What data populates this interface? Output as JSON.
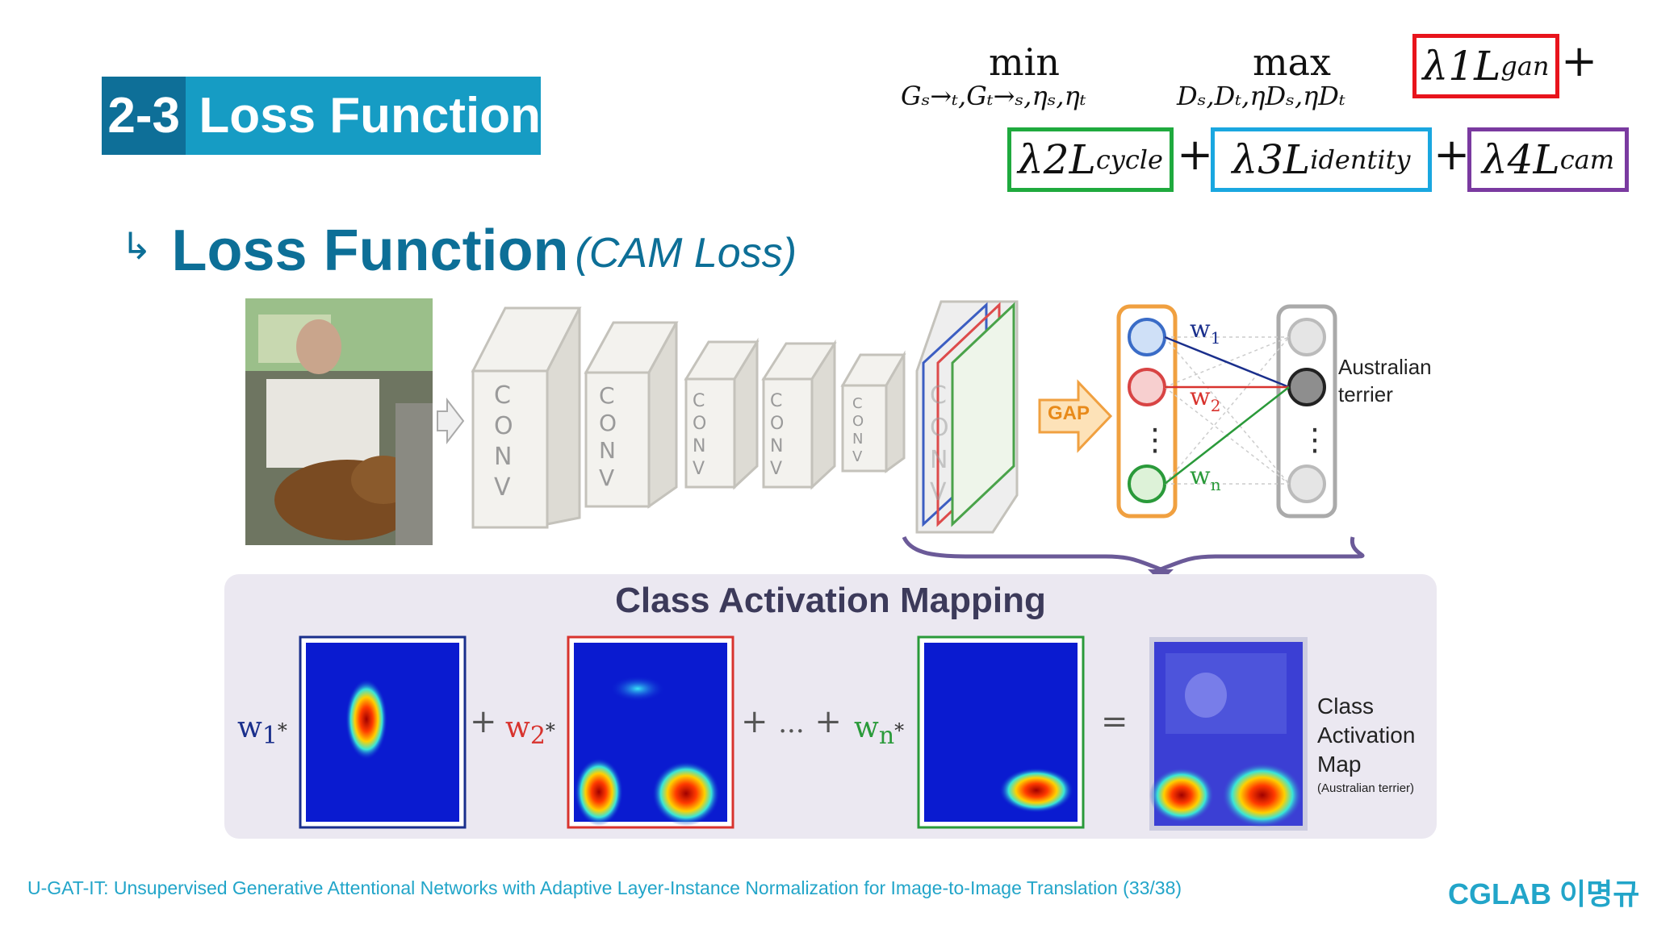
{
  "section": {
    "number": "2-3",
    "title": "Loss  Function"
  },
  "heading": {
    "arrow": "↳",
    "title": "Loss Function",
    "subtitle": "(CAM Loss)"
  },
  "formula": {
    "min_label": "min",
    "min_sub": "Gₛ→ₜ,Gₜ→ₛ,ηₛ,ηₜ",
    "max_label": "max",
    "max_sub": "Dₛ,Dₜ,ηDₛ,ηDₜ",
    "terms": [
      {
        "lambda": "λ1",
        "symbol": "L",
        "sub": "gan",
        "color": "#e8141c"
      },
      {
        "lambda": "λ2",
        "symbol": "L",
        "sub": "cycle",
        "color": "#1faa3e"
      },
      {
        "lambda": "λ3",
        "symbol": "L",
        "sub": "identity",
        "color": "#1aa7e0"
      },
      {
        "lambda": "λ4",
        "symbol": "L",
        "sub": "cam",
        "color": "#7a3aa0"
      }
    ],
    "plus": "+"
  },
  "network": {
    "conv_label": "CONV",
    "gap_label": "GAP",
    "weights": [
      "w1",
      "w2",
      "wn"
    ],
    "output_label_line1": "Australian",
    "output_label_line2": "terrier",
    "dots": "⋮"
  },
  "cam": {
    "title": "Class Activation Mapping",
    "w1": "w",
    "w1_sub": "1",
    "w2": "w",
    "w2_sub": "2",
    "wn": "w",
    "wn_sub": "n",
    "star": "*",
    "plus": "+",
    "ellipsis": "...",
    "equals": "=",
    "result_line1": "Class",
    "result_line2": "Activation",
    "result_line3": "Map",
    "result_note": "(Australian terrier)",
    "colors": {
      "w1": "#1a2f8c",
      "w2": "#d8332e",
      "wn": "#2a9a3a"
    }
  },
  "footer": {
    "citation": "U-GAT-IT: Unsupervised Generative Attentional Networks with Adaptive Layer-Instance Normalization for Image-to-Image Translation (33/38)",
    "author": "CGLAB 이명규"
  }
}
